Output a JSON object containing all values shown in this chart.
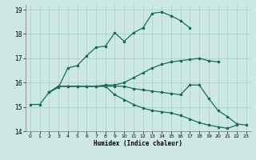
{
  "xlabel": "Humidex (Indice chaleur)",
  "bg_color": "#cde8e4",
  "grid_color": "#aad4cc",
  "line_color": "#1a6b5a",
  "xlim": [
    -0.5,
    23.5
  ],
  "ylim": [
    14,
    19.2
  ],
  "yticks": [
    14,
    15,
    16,
    17,
    18,
    19
  ],
  "xticks": [
    0,
    1,
    2,
    3,
    4,
    5,
    6,
    7,
    8,
    9,
    10,
    11,
    12,
    13,
    14,
    15,
    16,
    17,
    18,
    19,
    20,
    21,
    22,
    23
  ],
  "series": [
    {
      "x": [
        0,
        1,
        2,
        3,
        4,
        5,
        6,
        7,
        8,
        9,
        10,
        11,
        12,
        13,
        14,
        15,
        16,
        17
      ],
      "y": [
        15.1,
        15.1,
        15.6,
        15.8,
        16.6,
        16.7,
        17.1,
        17.45,
        17.5,
        18.05,
        17.7,
        18.05,
        18.25,
        18.85,
        18.9,
        18.75,
        18.55,
        18.25
      ]
    },
    {
      "x": [
        2,
        3,
        4,
        5,
        6,
        7,
        8,
        9,
        10,
        11,
        12,
        13,
        14,
        15,
        16,
        17,
        18,
        19,
        20
      ],
      "y": [
        15.6,
        15.85,
        15.85,
        15.85,
        15.85,
        15.85,
        15.9,
        15.9,
        16.0,
        16.2,
        16.4,
        16.6,
        16.75,
        16.85,
        16.9,
        16.95,
        17.0,
        16.9,
        16.85
      ]
    },
    {
      "x": [
        2,
        3,
        4,
        5,
        6,
        7,
        8,
        9,
        10,
        11,
        12,
        13,
        14,
        15,
        16,
        17,
        18,
        19,
        20,
        21,
        22,
        23
      ],
      "y": [
        15.6,
        15.85,
        15.85,
        15.85,
        15.85,
        15.85,
        15.85,
        15.85,
        15.85,
        15.75,
        15.7,
        15.65,
        15.6,
        15.55,
        15.5,
        15.9,
        15.9,
        15.35,
        14.85,
        14.6,
        14.3,
        14.25
      ]
    },
    {
      "x": [
        2,
        3,
        4,
        5,
        6,
        7,
        8,
        9,
        10,
        11,
        12,
        13,
        14,
        15,
        16,
        17,
        18,
        19,
        20,
        21,
        22
      ],
      "y": [
        15.6,
        15.85,
        15.85,
        15.85,
        15.85,
        15.85,
        15.85,
        15.5,
        15.3,
        15.1,
        14.95,
        14.85,
        14.8,
        14.75,
        14.65,
        14.5,
        14.35,
        14.25,
        14.18,
        14.12,
        14.25
      ]
    }
  ]
}
